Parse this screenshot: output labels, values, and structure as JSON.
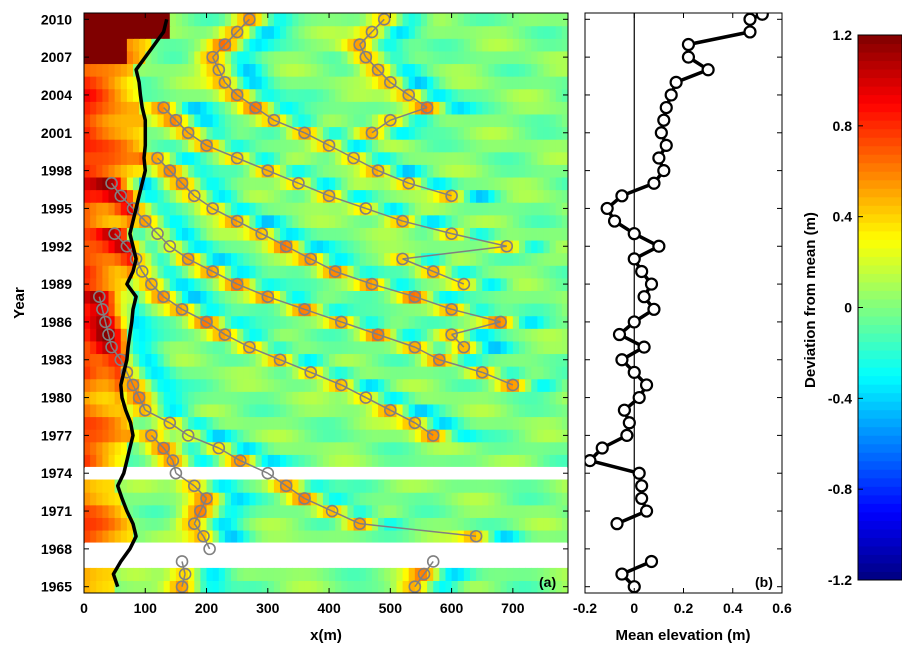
{
  "chart_data": [
    {
      "panel": "(a)",
      "type": "heatmap",
      "xlabel": "x(m)",
      "ylabel": "Year",
      "xlim": [
        0,
        790
      ],
      "ylim": [
        1964.5,
        2010.5
      ],
      "xticks": [
        0,
        100,
        200,
        300,
        400,
        500,
        600,
        700
      ],
      "yticks": [
        1965,
        1968,
        1971,
        1974,
        1977,
        1980,
        1983,
        1986,
        1989,
        1992,
        1995,
        1998,
        2001,
        2004,
        2007,
        2010
      ],
      "x_spacing_m": 10,
      "missing_years": [
        1967,
        1968,
        1974
      ],
      "shoreline": {
        "color": "#000000",
        "points": [
          [
            55,
            1965
          ],
          [
            48,
            1966
          ],
          [
            60,
            1967
          ],
          [
            75,
            1968
          ],
          [
            85,
            1969
          ],
          [
            80,
            1970
          ],
          [
            70,
            1971
          ],
          [
            62,
            1972
          ],
          [
            55,
            1973
          ],
          [
            65,
            1974
          ],
          [
            70,
            1975
          ],
          [
            75,
            1976
          ],
          [
            80,
            1977
          ],
          [
            76,
            1978
          ],
          [
            68,
            1979
          ],
          [
            62,
            1980
          ],
          [
            60,
            1981
          ],
          [
            65,
            1982
          ],
          [
            70,
            1983
          ],
          [
            72,
            1984
          ],
          [
            75,
            1985
          ],
          [
            78,
            1986
          ],
          [
            80,
            1987
          ],
          [
            85,
            1988
          ],
          [
            70,
            1989
          ],
          [
            80,
            1990
          ],
          [
            85,
            1991
          ],
          [
            80,
            1992
          ],
          [
            75,
            1993
          ],
          [
            80,
            1994
          ],
          [
            85,
            1995
          ],
          [
            90,
            1996
          ],
          [
            95,
            1997
          ],
          [
            100,
            1998
          ],
          [
            98,
            1999
          ],
          [
            100,
            2000
          ],
          [
            100,
            2001
          ],
          [
            100,
            2002
          ],
          [
            95,
            2003
          ],
          [
            92,
            2004
          ],
          [
            90,
            2005
          ],
          [
            85,
            2006
          ],
          [
            100,
            2007
          ],
          [
            115,
            2008
          ],
          [
            130,
            2009
          ],
          [
            135,
            2010
          ]
        ]
      },
      "bar_crests": {
        "color": "#808080",
        "marker": "circle",
        "dashed_across_missing_years": true,
        "tracks": [
          [
            [
              160,
              1965
            ],
            [
              165,
              1966
            ],
            [
              160,
              1967
            ]
          ],
          [
            [
              205,
              1968
            ],
            [
              195,
              1969
            ],
            [
              180,
              1970
            ],
            [
              190,
              1971
            ],
            [
              200,
              1972
            ],
            [
              180,
              1973
            ],
            [
              150,
              1974
            ],
            [
              145,
              1975
            ],
            [
              130,
              1976
            ],
            [
              110,
              1977
            ]
          ],
          [
            [
              540,
              1965
            ],
            [
              555,
              1966
            ],
            [
              570,
              1967
            ]
          ],
          [
            [
              640,
              1969
            ],
            [
              450,
              1970
            ],
            [
              405,
              1971
            ],
            [
              360,
              1972
            ],
            [
              330,
              1973
            ],
            [
              300,
              1974
            ],
            [
              255,
              1975
            ],
            [
              220,
              1976
            ],
            [
              170,
              1977
            ],
            [
              140,
              1978
            ],
            [
              100,
              1979
            ],
            [
              90,
              1980
            ],
            [
              80,
              1981
            ],
            [
              70,
              1982
            ],
            [
              60,
              1983
            ],
            [
              45,
              1984
            ],
            [
              40,
              1985
            ],
            [
              35,
              1986
            ],
            [
              30,
              1987
            ],
            [
              25,
              1988
            ]
          ],
          [
            [
              570,
              1977
            ],
            [
              540,
              1978
            ],
            [
              500,
              1979
            ],
            [
              460,
              1980
            ],
            [
              420,
              1981
            ],
            [
              370,
              1982
            ],
            [
              320,
              1983
            ],
            [
              270,
              1984
            ],
            [
              230,
              1985
            ],
            [
              200,
              1986
            ],
            [
              160,
              1987
            ],
            [
              130,
              1988
            ],
            [
              110,
              1989
            ],
            [
              95,
              1990
            ],
            [
              85,
              1991
            ],
            [
              70,
              1992
            ],
            [
              50,
              1993
            ]
          ],
          [
            [
              700,
              1981
            ],
            [
              650,
              1982
            ],
            [
              580,
              1983
            ],
            [
              540,
              1984
            ],
            [
              480,
              1985
            ],
            [
              420,
              1986
            ],
            [
              360,
              1987
            ],
            [
              300,
              1988
            ],
            [
              250,
              1989
            ],
            [
              210,
              1990
            ],
            [
              170,
              1991
            ],
            [
              140,
              1992
            ],
            [
              120,
              1993
            ],
            [
              100,
              1994
            ],
            [
              80,
              1995
            ],
            [
              60,
              1996
            ],
            [
              45,
              1997
            ]
          ],
          [
            [
              620,
              1984
            ],
            [
              600,
              1985
            ],
            [
              680,
              1986
            ],
            [
              600,
              1987
            ],
            [
              540,
              1988
            ],
            [
              470,
              1989
            ],
            [
              410,
              1990
            ],
            [
              370,
              1991
            ],
            [
              330,
              1992
            ],
            [
              290,
              1993
            ],
            [
              250,
              1994
            ],
            [
              210,
              1995
            ],
            [
              180,
              1996
            ],
            [
              160,
              1997
            ],
            [
              140,
              1998
            ],
            [
              120,
              1999
            ]
          ],
          [
            [
              620,
              1989
            ],
            [
              570,
              1990
            ],
            [
              520,
              1991
            ],
            [
              690,
              1992
            ],
            [
              600,
              1993
            ],
            [
              520,
              1994
            ],
            [
              460,
              1995
            ],
            [
              400,
              1996
            ],
            [
              350,
              1997
            ],
            [
              300,
              1998
            ],
            [
              250,
              1999
            ],
            [
              200,
              2000
            ],
            [
              170,
              2001
            ],
            [
              150,
              2002
            ],
            [
              130,
              2003
            ]
          ],
          [
            [
              600,
              1996
            ],
            [
              530,
              1997
            ],
            [
              480,
              1998
            ],
            [
              440,
              1999
            ],
            [
              400,
              2000
            ],
            [
              360,
              2001
            ],
            [
              310,
              2002
            ],
            [
              280,
              2003
            ],
            [
              250,
              2004
            ],
            [
              230,
              2005
            ],
            [
              220,
              2006
            ],
            [
              210,
              2007
            ],
            [
              230,
              2008
            ],
            [
              250,
              2009
            ],
            [
              270,
              2010
            ]
          ],
          [
            [
              470,
              2001
            ],
            [
              500,
              2002
            ],
            [
              560,
              2003
            ],
            [
              530,
              2004
            ],
            [
              500,
              2005
            ],
            [
              480,
              2006
            ],
            [
              460,
              2007
            ],
            [
              450,
              2008
            ],
            [
              470,
              2009
            ],
            [
              490,
              2010
            ]
          ]
        ]
      }
    },
    {
      "panel": "(b)",
      "type": "line",
      "xlabel": "Mean elevation (m)",
      "xlim": [
        -0.2,
        0.6
      ],
      "ylim": [
        1964.5,
        2010.5
      ],
      "xticks": [
        -0.2,
        0,
        0.2,
        0.4,
        0.6
      ],
      "xtick_labels": [
        "-0.2",
        "0",
        "0.2",
        "0.4",
        "0.6"
      ],
      "zero_line": 0,
      "line_color": "#000000",
      "marker": "circle",
      "segments": [
        [
          [
            0.0,
            1965
          ],
          [
            -0.05,
            1966
          ],
          [
            0.07,
            1967
          ]
        ],
        [
          [
            -0.07,
            1970
          ],
          [
            0.05,
            1971
          ],
          [
            0.03,
            1972
          ],
          [
            0.03,
            1973
          ],
          [
            0.02,
            1974
          ],
          [
            -0.18,
            1975
          ],
          [
            -0.13,
            1976
          ],
          [
            -0.03,
            1977
          ],
          [
            -0.02,
            1978
          ],
          [
            -0.04,
            1979
          ],
          [
            0.02,
            1980
          ],
          [
            0.05,
            1981
          ],
          [
            0.0,
            1982
          ],
          [
            -0.05,
            1983
          ],
          [
            0.04,
            1984
          ],
          [
            -0.06,
            1985
          ],
          [
            0.0,
            1986
          ],
          [
            0.08,
            1987
          ],
          [
            0.04,
            1988
          ],
          [
            0.07,
            1989
          ],
          [
            0.03,
            1990
          ],
          [
            0.0,
            1991
          ],
          [
            0.1,
            1992
          ],
          [
            0.0,
            1993
          ],
          [
            -0.08,
            1994
          ],
          [
            -0.11,
            1995
          ],
          [
            -0.05,
            1996
          ],
          [
            0.08,
            1997
          ],
          [
            0.12,
            1998
          ],
          [
            0.1,
            1999
          ],
          [
            0.13,
            2000
          ],
          [
            0.11,
            2001
          ],
          [
            0.12,
            2002
          ],
          [
            0.13,
            2003
          ],
          [
            0.15,
            2004
          ],
          [
            0.17,
            2005
          ],
          [
            0.3,
            2006
          ],
          [
            0.22,
            2007
          ],
          [
            0.22,
            2008
          ],
          [
            0.47,
            2009
          ],
          [
            0.47,
            2010
          ],
          [
            0.52,
            2010.4
          ]
        ]
      ]
    },
    {
      "type": "colorbar",
      "label": "Deviation from mean (m)",
      "range": [
        -1.2,
        1.2
      ],
      "ticks": [
        -1.2,
        -0.8,
        -0.4,
        0,
        0.4,
        0.8,
        1.2
      ],
      "tick_labels": [
        "-1.2",
        "-0.8",
        "-0.4",
        "0",
        "0.4",
        "0.8",
        "1.2"
      ],
      "colormap": "jet"
    }
  ]
}
